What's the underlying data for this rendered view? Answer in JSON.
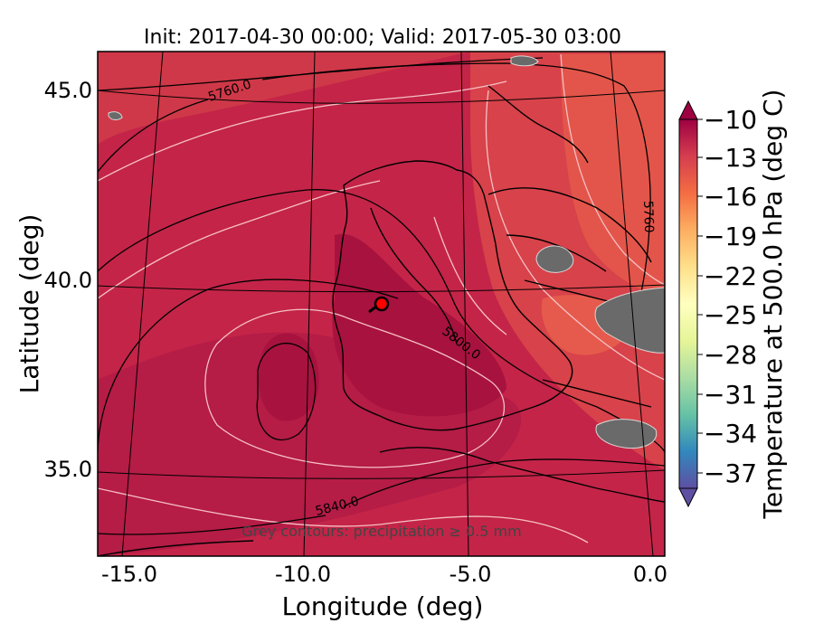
{
  "title": "Init: 2017-04-30 00:00; Valid: 2017-05-30 03:00",
  "axes": {
    "xlabel": "Longitude (deg)",
    "ylabel": "Latitude (deg)",
    "xticks": [
      "-15.0",
      "-10.0",
      "-5.0",
      "0.0"
    ],
    "yticks": [
      "45.0",
      "40.0",
      "35.0"
    ]
  },
  "colorbar": {
    "label": "Temperature at 500.0 hPa (deg C)",
    "ticks": [
      "−10",
      "−13",
      "−16",
      "−19",
      "−22",
      "−25",
      "−28",
      "−31",
      "−34",
      "−37"
    ],
    "colors": [
      "#5e4fa2",
      "#3288bd",
      "#66c2a5",
      "#abdda4",
      "#e6f598",
      "#ffffbf",
      "#fee08b",
      "#fdae61",
      "#f46d43",
      "#d53e4f",
      "#9e0142"
    ]
  },
  "contour_labels": {
    "a": "5760.0",
    "b": "5760",
    "c": "5800.0",
    "d": "5840.0"
  },
  "note": "Grey contours: precipitation ≥ 0.5 mm",
  "marker": {
    "color": "#ff0000"
  }
}
